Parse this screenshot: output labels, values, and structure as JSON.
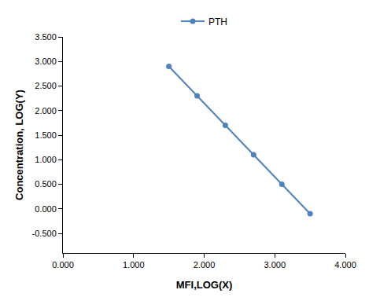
{
  "chart_data": {
    "type": "line",
    "x_label": "MFI,LOG(X)",
    "y_label": "Concentration, LOG(Y)",
    "x": [
      1.5,
      1.9,
      2.3,
      2.7,
      3.1,
      3.5
    ],
    "series": [
      {
        "name": "PTH",
        "color": "#4f81bd",
        "marker": "circle",
        "line_style": "solid",
        "values": [
          2.9,
          2.3,
          1.7,
          1.1,
          0.5,
          -0.1
        ]
      }
    ],
    "xlim": [
      0,
      4
    ],
    "xticks": [
      {
        "value": 0,
        "label": "0.000"
      },
      {
        "value": 1,
        "label": "1.000"
      },
      {
        "value": 2,
        "label": "2.000"
      },
      {
        "value": 3,
        "label": "3.000"
      },
      {
        "value": 4,
        "label": "4.000"
      }
    ],
    "ylim": [
      -0.9,
      3.5
    ],
    "yticks": [
      {
        "value": -0.5,
        "label": "-0.500"
      },
      {
        "value": 0,
        "label": "0.000"
      },
      {
        "value": 0.5,
        "label": "0.500"
      },
      {
        "value": 1,
        "label": "1.000"
      },
      {
        "value": 1.5,
        "label": "1.500"
      },
      {
        "value": 2,
        "label": "2.000"
      },
      {
        "value": 2.5,
        "label": "2.500"
      },
      {
        "value": 3,
        "label": "3.000"
      },
      {
        "value": 3.5,
        "label": "3.500"
      }
    ],
    "legend": "top",
    "grid": false
  }
}
